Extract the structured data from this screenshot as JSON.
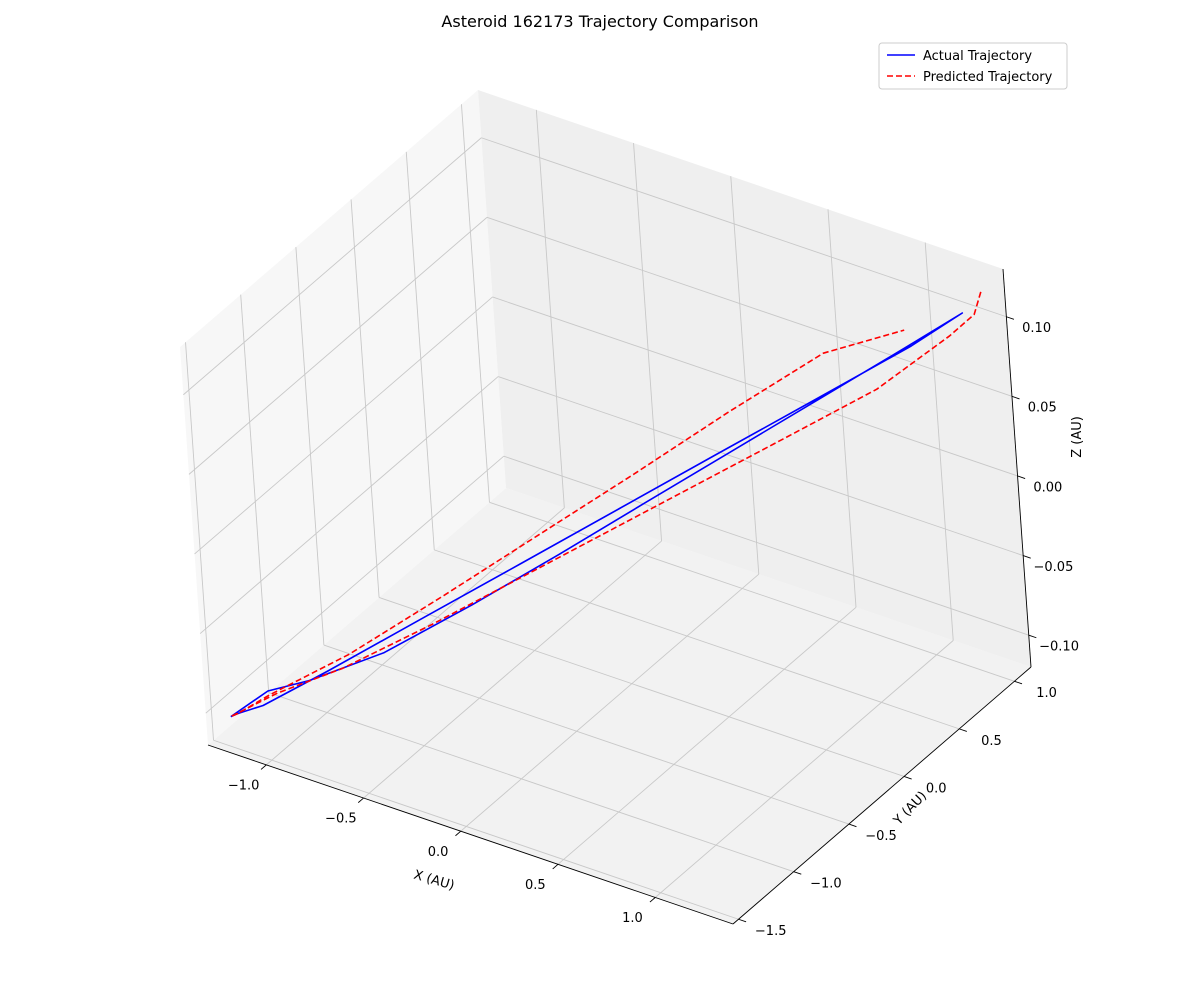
{
  "chart_data": {
    "type": "line",
    "projection": "3d",
    "title": "Asteroid 162173 Trajectory Comparison",
    "xlabel": "X (AU)",
    "ylabel": "Y (AU)",
    "zlabel": "Z (AU)",
    "xlim": [
      -1.3,
      1.4
    ],
    "ylim": [
      -1.55,
      1.15
    ],
    "zlim": [
      -0.12,
      0.13
    ],
    "xticks": [
      -1.0,
      -0.5,
      0.0,
      0.5,
      1.0
    ],
    "xtick_labels": [
      "−1.0",
      "−0.5",
      "0.0",
      "0.5",
      "1.0"
    ],
    "yticks": [
      -1.5,
      -1.0,
      -0.5,
      0.0,
      0.5,
      1.0
    ],
    "ytick_labels": [
      "−1.5",
      "−1.0",
      "−0.5",
      "0.0",
      "0.5",
      "1.0"
    ],
    "zticks": [
      -0.1,
      -0.05,
      0.0,
      0.05,
      0.1
    ],
    "ztick_labels": [
      "−0.10",
      "−0.05",
      "0.00",
      "0.05",
      "0.10"
    ],
    "grid": true,
    "legend_position": "top-right",
    "series": [
      {
        "name": "Actual Trajectory",
        "color": "#0000ff",
        "linestyle": "solid",
        "x": [
          -1.2,
          -1.18,
          -1.1,
          -0.9,
          -0.6,
          -0.3,
          0.0,
          0.3,
          0.6,
          0.9,
          1.2,
          1.0,
          0.7,
          0.4,
          0.1,
          -0.2,
          -0.5,
          -0.8,
          -1.05,
          -1.18,
          -1.2
        ],
        "y": [
          -1.5,
          -1.47,
          -1.38,
          -1.13,
          -0.75,
          -0.38,
          0.0,
          0.38,
          0.75,
          1.13,
          1.1,
          0.91,
          0.63,
          0.35,
          0.07,
          -0.22,
          -0.51,
          -0.8,
          -1.05,
          -1.2,
          -1.5
        ],
        "z": [
          -0.101,
          -0.1,
          -0.097,
          -0.082,
          -0.058,
          -0.034,
          -0.01,
          0.014,
          0.038,
          0.062,
          0.097,
          0.078,
          0.05,
          0.022,
          -0.006,
          -0.034,
          -0.061,
          -0.086,
          -0.099,
          -0.102,
          -0.101
        ]
      },
      {
        "name": "Predicted Trajectory",
        "color": "#ff0000",
        "linestyle": "dashed",
        "x": [
          1.25,
          1.25,
          1.15,
          0.9,
          0.6,
          0.3,
          0.0,
          -0.3,
          -0.6,
          -0.9,
          -1.1,
          -1.2,
          -1.18,
          -1.1,
          -0.85,
          -0.55,
          -0.25,
          0.05,
          0.35,
          0.65,
          0.9
        ],
        "y": [
          1.19,
          1.12,
          1.06,
          0.81,
          0.5,
          0.2,
          -0.1,
          -0.4,
          -0.7,
          -1.0,
          -1.25,
          -1.5,
          -1.47,
          -1.32,
          -1.02,
          -0.66,
          -0.3,
          0.06,
          0.42,
          0.78,
          1.08
        ],
        "z": [
          0.107,
          0.097,
          0.083,
          0.054,
          0.03,
          0.006,
          -0.018,
          -0.042,
          -0.066,
          -0.088,
          -0.097,
          -0.101,
          -0.1,
          -0.094,
          -0.076,
          -0.048,
          -0.019,
          0.01,
          0.04,
          0.068,
          0.075
        ]
      }
    ]
  }
}
